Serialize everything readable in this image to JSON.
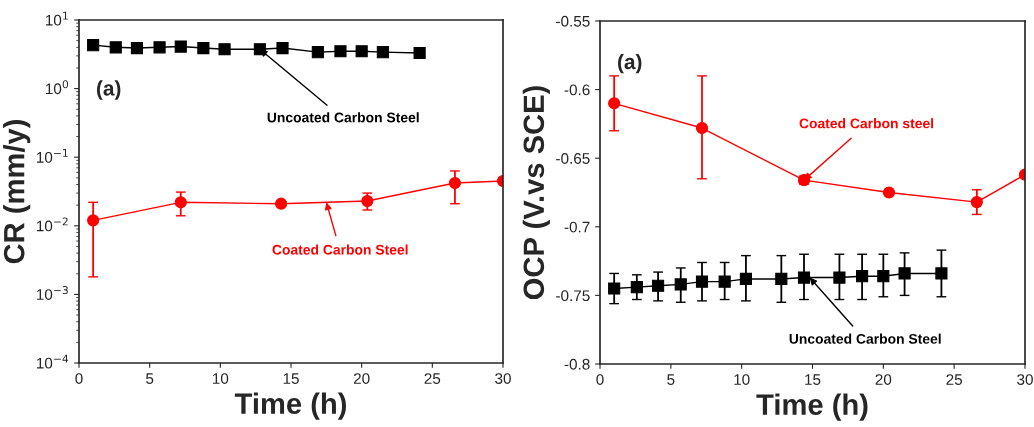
{
  "chart_data": [
    {
      "type": "line",
      "xlabel": "Time (h)",
      "ylabel": "CR (mm/y)",
      "log": "y",
      "xlim": [
        0,
        30
      ],
      "xticks": [
        0,
        5,
        10,
        15,
        20,
        25,
        30
      ],
      "ylim": [
        0.0001,
        10
      ],
      "yticks": [
        {
          "value": 0.0001,
          "label": "10$^{−4}$"
        },
        {
          "value": 0.001,
          "label": "10$^{−3}$"
        },
        {
          "value": 0.01,
          "label": "10$^{−2}$"
        },
        {
          "value": 0.1,
          "label": "10$^{−1}$"
        },
        {
          "value": 1,
          "label": "10$^{0}$"
        },
        {
          "value": 10,
          "label": "10$^{1}$"
        }
      ],
      "grid": false,
      "legend": false,
      "series": [
        {
          "color": "#000000",
          "marker": "square",
          "x": [
            1,
            2.6,
            4.1,
            5.7,
            7.2,
            8.8,
            10.3,
            12.8,
            14.4,
            16.9,
            18.5,
            20,
            21.5,
            24.1
          ],
          "values": [
            4.3,
            4.0,
            3.9,
            4.0,
            4.1,
            3.9,
            3.75,
            3.75,
            3.9,
            3.4,
            3.5,
            3.5,
            3.4,
            3.3
          ]
        },
        {
          "color": "#ff0000",
          "marker": "circle",
          "x": [
            1,
            7.2,
            14.3,
            20.4,
            26.6,
            30
          ],
          "values": [
            0.012,
            0.022,
            0.021,
            0.023,
            0.042,
            0.045
          ],
          "errors": [
            [
              0.0018,
              0.022
            ],
            [
              0.014,
              0.031
            ],
            null,
            [
              0.017,
              0.03
            ],
            [
              0.021,
              0.063
            ],
            null
          ]
        }
      ],
      "annotations": [
        "(a)",
        {
          "text": "Uncoated Carbon Steel",
          "x": 12.8,
          "y": 3.75
        },
        {
          "text": "Coated Carbon Steel",
          "x": 17.5,
          "y": 0.022
        }
      ]
    },
    {
      "type": "line",
      "xlabel": "Time (h)",
      "ylabel": "OCP (V.vs SCE)",
      "xlim": [
        0,
        30
      ],
      "xticks": [
        0,
        5,
        10,
        15,
        20,
        25,
        30
      ],
      "ylim": [
        -0.8,
        -0.55
      ],
      "yticks": [
        -0.8,
        -0.75,
        -0.7,
        -0.65,
        -0.6,
        -0.55
      ],
      "grid": false,
      "legend": false,
      "series": [
        {
          "color": "#ff0000",
          "marker": "circle",
          "x": [
            1,
            7.2,
            14.4,
            20.4,
            26.6,
            30
          ],
          "values": [
            -0.61,
            -0.628,
            -0.666,
            -0.675,
            -0.682,
            -0.662
          ],
          "errors": [
            [
              -0.63,
              -0.59
            ],
            [
              -0.665,
              -0.59
            ],
            [
              -0.669,
              -0.663
            ],
            null,
            [
              -0.691,
              -0.673
            ],
            null
          ]
        },
        {
          "color": "#000000",
          "marker": "square",
          "x": [
            1,
            2.6,
            4.1,
            5.7,
            7.2,
            8.8,
            10.3,
            12.8,
            14.4,
            16.9,
            18.5,
            20,
            21.5,
            24.1
          ],
          "values": [
            -0.745,
            -0.744,
            -0.743,
            -0.742,
            -0.74,
            -0.74,
            -0.738,
            -0.738,
            -0.737,
            -0.737,
            -0.736,
            -0.736,
            -0.734,
            -0.734
          ],
          "errors": [
            [
              -0.756,
              -0.734
            ],
            [
              -0.753,
              -0.735
            ],
            [
              -0.754,
              -0.733
            ],
            [
              -0.755,
              -0.73
            ],
            [
              -0.754,
              -0.726
            ],
            [
              -0.753,
              -0.726
            ],
            [
              -0.754,
              -0.721
            ],
            [
              -0.755,
              -0.721
            ],
            [
              -0.753,
              -0.72
            ],
            [
              -0.753,
              -0.72
            ],
            [
              -0.753,
              -0.72
            ],
            [
              -0.751,
              -0.72
            ],
            [
              -0.75,
              -0.719
            ],
            [
              -0.751,
              -0.717
            ]
          ]
        }
      ],
      "annotations": [
        "(a)",
        {
          "text": "Coated Carbon steel",
          "x": 14.4,
          "y": -0.666
        },
        {
          "text": "Uncoated Carbon Steel",
          "x": 14.8,
          "y": -0.737
        }
      ]
    }
  ]
}
